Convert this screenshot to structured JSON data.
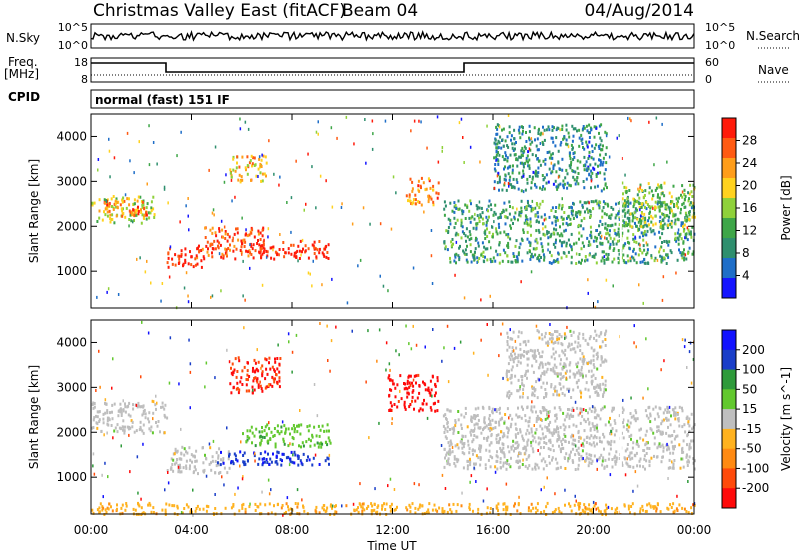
{
  "header": {
    "station": "Christmas Valley East (fitACF)",
    "beam": "Beam 04",
    "date": "04/Aug/2014"
  },
  "side_labels": {
    "nsky": "N.Sky",
    "nsky_ticks": [
      "10^5",
      "10^0"
    ],
    "nsearch": "N.Search",
    "freq": "Freq.",
    "freq_unit": "[MHz]",
    "freq_ticks": [
      "18",
      "8"
    ],
    "nave": "Nave",
    "nave_ticks": [
      "60",
      "0"
    ],
    "cpid": "CPID",
    "cpid_value": "normal (fast) 151 IF"
  },
  "colors": {
    "power_scale": [
      "#1515ff",
      "#1f6ec8",
      "#2f8f6e",
      "#3ea648",
      "#8fd13a",
      "#ffd21f",
      "#ff9d1a",
      "#ff5a12",
      "#ff1a0a"
    ],
    "velocity_scale": [
      "#1212ff",
      "#1a3ec8",
      "#2e9a3a",
      "#62c82e",
      "#bfbfbf",
      "#ffb21f",
      "#ff8a12",
      "#ff4a0a",
      "#ff0a0a"
    ],
    "ground_scatter": "#bdbdbd"
  },
  "chart_data": [
    {
      "type": "heatmap",
      "panel": "power",
      "ylabel": "Slant Range [km]",
      "x_ticks": [
        "00:00",
        "04:00",
        "08:00",
        "12:00",
        "16:00",
        "20:00",
        "00:00"
      ],
      "y_ticks": [
        1000,
        2000,
        3000,
        4000
      ],
      "x_range_hours": [
        0,
        24
      ],
      "y_range_km": [
        180,
        4500
      ],
      "colorbar": {
        "title": "Power [dB]",
        "ticks": [
          4,
          8,
          12,
          16,
          20,
          24,
          28
        ],
        "range": [
          0,
          30
        ]
      },
      "echo_bands": [
        {
          "t0": 0.0,
          "t1": 2.5,
          "r0": 2100,
          "r1": 2700,
          "value": 16
        },
        {
          "t0": 0.5,
          "t1": 2.2,
          "r0": 2200,
          "r1": 2600,
          "value": 24
        },
        {
          "t0": 3.0,
          "t1": 4.5,
          "r0": 1100,
          "r1": 1600,
          "value": 28
        },
        {
          "t0": 4.5,
          "t1": 7.0,
          "r0": 1300,
          "r1": 2000,
          "value": 26
        },
        {
          "t0": 6.5,
          "t1": 9.5,
          "r0": 1300,
          "r1": 1700,
          "value": 29
        },
        {
          "t0": 5.5,
          "t1": 7.0,
          "r0": 3000,
          "r1": 3600,
          "value": 20
        },
        {
          "t0": 12.5,
          "t1": 13.8,
          "r0": 2500,
          "r1": 3100,
          "value": 22
        },
        {
          "t0": 14.0,
          "t1": 24.0,
          "r0": 1200,
          "r1": 2600,
          "value": 10
        },
        {
          "t0": 16.0,
          "t1": 20.5,
          "r0": 2800,
          "r1": 4300,
          "value": 8
        },
        {
          "t0": 21.0,
          "t1": 24.0,
          "r0": 2000,
          "r1": 3000,
          "value": 14
        }
      ]
    },
    {
      "type": "heatmap",
      "panel": "velocity",
      "ylabel": "Slant Range [km]",
      "xlabel": "Time UT",
      "x_ticks": [
        "00:00",
        "04:00",
        "08:00",
        "12:00",
        "16:00",
        "20:00",
        "00:00"
      ],
      "y_ticks": [
        1000,
        2000,
        3000,
        4000
      ],
      "x_range_hours": [
        0,
        24
      ],
      "y_range_km": [
        180,
        4500
      ],
      "colorbar": {
        "title": "Velocity [m s^-1]",
        "ticks": [
          200,
          100,
          50,
          15,
          -15,
          -50,
          -100,
          -200
        ],
        "range": [
          -250,
          250
        ]
      },
      "echo_bands": [
        {
          "t0": 0.0,
          "t1": 3.0,
          "r0": 2000,
          "r1": 2700,
          "value": 0
        },
        {
          "t0": 3.0,
          "t1": 5.5,
          "r0": 1100,
          "r1": 1700,
          "value": 0
        },
        {
          "t0": 5.0,
          "t1": 9.5,
          "r0": 1300,
          "r1": 1600,
          "value": 180
        },
        {
          "t0": 6.0,
          "t1": 9.5,
          "r0": 1700,
          "r1": 2200,
          "value": 60
        },
        {
          "t0": 5.5,
          "t1": 7.5,
          "r0": 2900,
          "r1": 3700,
          "value": -200
        },
        {
          "t0": 11.8,
          "t1": 13.8,
          "r0": 2500,
          "r1": 3300,
          "value": -220
        },
        {
          "t0": 14.0,
          "t1": 24.0,
          "r0": 1200,
          "r1": 2600,
          "value": 0
        },
        {
          "t0": 16.5,
          "t1": 20.5,
          "r0": 2800,
          "r1": 4300,
          "value": 0
        },
        {
          "t0": 0.0,
          "t1": 24.0,
          "r0": 200,
          "r1": 450,
          "value": -60
        }
      ]
    }
  ]
}
